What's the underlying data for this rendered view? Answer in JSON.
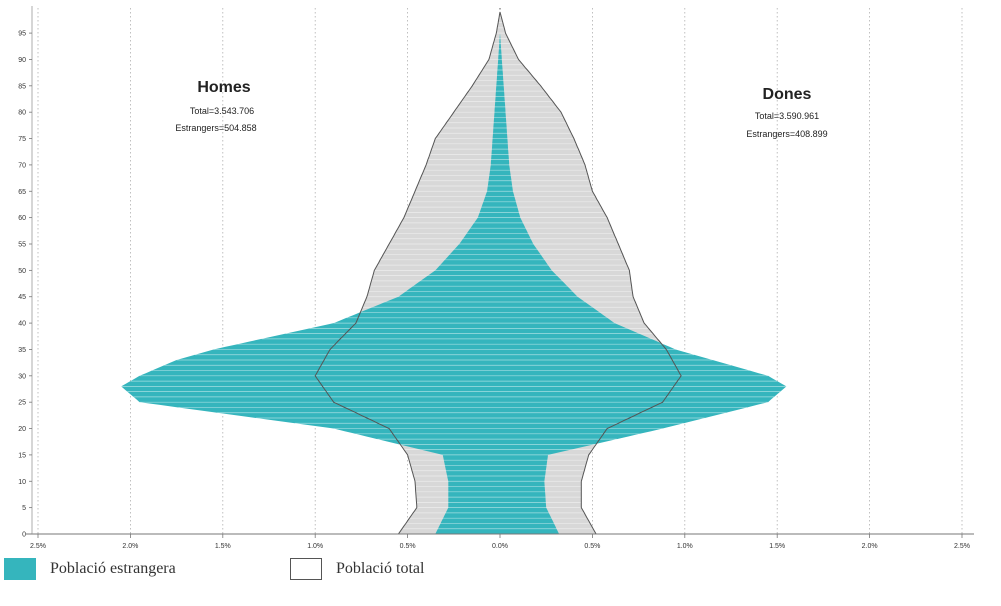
{
  "chart_data": {
    "type": "bar",
    "orientation": "horizontal-population-pyramid",
    "x_ticks": [
      "2.5%",
      "2.0%",
      "1.5%",
      "1.0%",
      "0.5%",
      "0.0%",
      "0.5%",
      "1.0%",
      "1.5%",
      "2.0%",
      "2.5%"
    ],
    "y_ticks": [
      "0",
      "5",
      "10",
      "15",
      "20",
      "25",
      "30",
      "35",
      "40",
      "45",
      "50",
      "55",
      "60",
      "65",
      "70",
      "75",
      "80",
      "85",
      "90",
      "95"
    ],
    "xlim": [
      -2.5,
      2.5
    ],
    "ylim": [
      0,
      99
    ],
    "grid": "vertical dotted",
    "colors": {
      "foreign": "#35b5bd",
      "total_fill": "#d8d8d8",
      "total_line": "#555555"
    },
    "annotations": {
      "men": {
        "title": "Homes",
        "line1": "Total=3.543.706",
        "line2": "Estrangers=504.858"
      },
      "women": {
        "title": "Dones",
        "line1": "Total=3.590.961",
        "line2": "Estrangers=408.899"
      }
    },
    "series": [
      {
        "name": "Població estrangera",
        "ages": [
          0,
          5,
          10,
          15,
          20,
          25,
          28,
          30,
          33,
          35,
          40,
          45,
          50,
          55,
          60,
          65,
          70,
          75,
          80,
          85,
          90,
          95
        ],
        "men": [
          0.35,
          0.28,
          0.28,
          0.31,
          0.9,
          1.95,
          2.05,
          1.95,
          1.75,
          1.55,
          0.9,
          0.55,
          0.35,
          0.22,
          0.12,
          0.07,
          0.05,
          0.04,
          0.03,
          0.02,
          0.01,
          0.0
        ],
        "women": [
          0.32,
          0.25,
          0.24,
          0.26,
          0.88,
          1.45,
          1.55,
          1.45,
          1.15,
          0.95,
          0.62,
          0.42,
          0.28,
          0.18,
          0.11,
          0.07,
          0.05,
          0.04,
          0.03,
          0.02,
          0.01,
          0.0
        ]
      },
      {
        "name": "Població total",
        "ages": [
          0,
          5,
          10,
          15,
          20,
          25,
          30,
          35,
          40,
          45,
          50,
          55,
          60,
          65,
          70,
          75,
          80,
          85,
          90,
          95,
          99
        ],
        "men": [
          0.55,
          0.45,
          0.46,
          0.5,
          0.6,
          0.9,
          1.0,
          0.92,
          0.78,
          0.72,
          0.68,
          0.6,
          0.52,
          0.46,
          0.4,
          0.35,
          0.25,
          0.15,
          0.06,
          0.02,
          0.0
        ],
        "women": [
          0.52,
          0.44,
          0.44,
          0.48,
          0.58,
          0.88,
          0.98,
          0.9,
          0.78,
          0.72,
          0.7,
          0.64,
          0.58,
          0.5,
          0.46,
          0.4,
          0.33,
          0.22,
          0.1,
          0.03,
          0.0
        ]
      }
    ]
  },
  "legend": {
    "foreign_label": "Població estrangera",
    "total_label": "Població total"
  }
}
